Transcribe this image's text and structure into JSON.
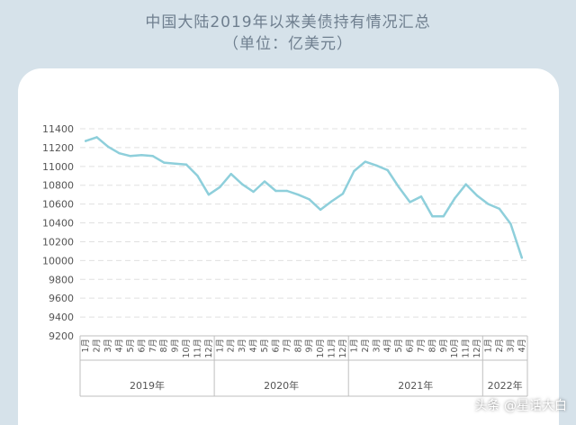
{
  "title": "中国大陆2019年以来美债持有情况汇总",
  "subtitle": "（单位：亿美元）",
  "watermark": "头条 @星话大白",
  "line_color": "#8ecfdb",
  "chart_data": {
    "type": "line",
    "title": "中国大陆2019年以来美债持有情况汇总",
    "subtitle": "（单位：亿美元）",
    "ylim": [
      9200,
      11400
    ],
    "yticks": [
      9200,
      9400,
      9600,
      9800,
      10000,
      10200,
      10400,
      10600,
      10800,
      11000,
      11200,
      11400
    ],
    "grid": true,
    "month_labels": [
      "1月",
      "2月",
      "3月",
      "4月",
      "5月",
      "6月",
      "7月",
      "8月",
      "9月",
      "10月",
      "11月",
      "12月"
    ],
    "years": [
      {
        "label": "2019年",
        "months": 12
      },
      {
        "label": "2020年",
        "months": 12
      },
      {
        "label": "2021年",
        "months": 12
      },
      {
        "label": "2022年",
        "months": 4
      }
    ],
    "values": [
      11270,
      11310,
      11210,
      11140,
      11110,
      11120,
      11110,
      11040,
      11030,
      11020,
      10900,
      10700,
      10780,
      10920,
      10810,
      10730,
      10840,
      10740,
      10740,
      10700,
      10650,
      10540,
      10630,
      10710,
      10950,
      11050,
      11010,
      10960,
      10780,
      10620,
      10680,
      10470,
      10470,
      10660,
      10810,
      10690,
      10600,
      10550,
      10390,
      10030
    ]
  }
}
